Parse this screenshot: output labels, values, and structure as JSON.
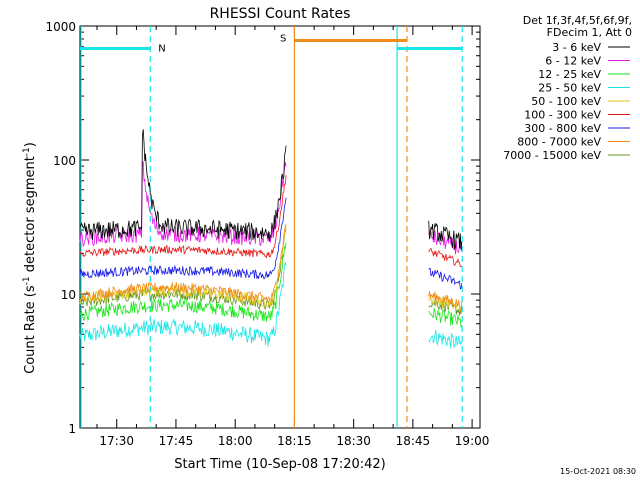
{
  "chart_data": {
    "type": "line",
    "title": "RHESSI Count Rates",
    "xlabel": "Start Time (10-Sep-08 17:20:42)",
    "ylabel": "Count Rate (s⁻¹ detector segment⁻¹)",
    "ylabel_base": "Count Rate (s",
    "ylabel_mid": " detector segment",
    "ylabel_end": ")",
    "ylabel_sup": "-1",
    "y_scale": "log",
    "ylim": [
      1,
      1000
    ],
    "xlim": [
      "17:20:42",
      "19:02:00"
    ],
    "x_ticks": [
      "17:30",
      "17:45",
      "18:00",
      "18:15",
      "18:30",
      "18:45",
      "19:00"
    ],
    "y_ticks": [
      "1",
      "10",
      "100",
      "1000"
    ],
    "legend": {
      "position": "top-right",
      "header": [
        "Det 1f,3f,4f,5f,6f,9f,",
        "FDecim 1, Att 0"
      ],
      "entries": [
        {
          "label": "3 - 6 keV",
          "color": "#000000"
        },
        {
          "label": "6 - 12 keV",
          "color": "#e619e6"
        },
        {
          "label": "12 - 25 keV",
          "color": "#19e619"
        },
        {
          "label": "25 - 50 keV",
          "color": "#19e6e6"
        },
        {
          "label": "50 - 100 keV",
          "color": "#e6c819"
        },
        {
          "label": "100 - 300 keV",
          "color": "#e61919"
        },
        {
          "label": "300 - 800 keV",
          "color": "#1919e6"
        },
        {
          "label": "800 - 7000 keV",
          "color": "#f08c19"
        },
        {
          "label": "7000 - 15000 keV",
          "color": "#649619"
        }
      ]
    },
    "series": [
      {
        "name": "3 - 6 keV",
        "color": "#000000",
        "level": 29,
        "noise": 0.16,
        "zorder": 9
      },
      {
        "name": "6 - 12 keV",
        "color": "#e619e6",
        "level": 26,
        "noise": 0.14,
        "zorder": 8
      },
      {
        "name": "100 - 300 keV",
        "color": "#e61919",
        "level": 20,
        "noise": 0.07,
        "zorder": 7
      },
      {
        "name": "300 - 800 keV",
        "color": "#1919e6",
        "level": 14,
        "noise": 0.08,
        "zorder": 6
      },
      {
        "name": "800 - 7000 keV",
        "color": "#f08c19",
        "level": 9.5,
        "noise": 0.09,
        "zorder": 5
      },
      {
        "name": "50 - 100 keV",
        "color": "#e6c819",
        "level": 9,
        "noise": 0.1,
        "zorder": 4
      },
      {
        "name": "7000 - 15000 keV",
        "color": "#649619",
        "level": 8.5,
        "noise": 0.1,
        "zorder": 3
      },
      {
        "name": "12 - 25 keV",
        "color": "#19e619",
        "level": 7,
        "noise": 0.12,
        "zorder": 2
      },
      {
        "name": "25 - 50 keV",
        "color": "#19e6e6",
        "level": 4.8,
        "noise": 0.14,
        "zorder": 1
      }
    ],
    "data_segments": [
      {
        "start": "17:20:42",
        "end": "18:13:00"
      },
      {
        "start": "18:49:00",
        "end": "18:57:30"
      }
    ],
    "annotations": {
      "night_label": "N",
      "saa_label": "S",
      "night_bars": [
        {
          "start": "17:20:42",
          "end": "17:38:30",
          "y": 680
        },
        {
          "start": "18:41:00",
          "end": "18:57:30",
          "y": 680
        }
      ],
      "saa_bar": {
        "start": "18:15:00",
        "end": "18:43:30",
        "y": 780
      },
      "solid_lines": [
        {
          "time": "17:20:42",
          "color": "#19e6e6"
        },
        {
          "time": "18:15:00",
          "color": "#f08c19"
        },
        {
          "time": "18:41:00",
          "color": "#19e6e6"
        }
      ],
      "dashed_lines": [
        {
          "time": "17:38:30",
          "color": "#19e6e6"
        },
        {
          "time": "18:43:30",
          "color": "#f08c19"
        },
        {
          "time": "18:57:30",
          "color": "#19e6e6"
        }
      ],
      "night_color": "#19e6e6",
      "saa_color": "#f08c19"
    },
    "timestamp": "15-Oct-2021 08:30"
  }
}
